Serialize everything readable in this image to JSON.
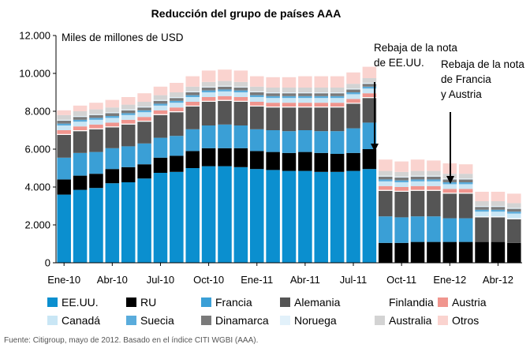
{
  "chart_data": {
    "type": "bar",
    "stacked": true,
    "title": "Reducción del grupo de países AAA",
    "ylabel": "Miles de millones de USD",
    "xlabel": "",
    "ylim": [
      0,
      12000
    ],
    "y_ticks": [
      0,
      2000,
      4000,
      6000,
      8000,
      10000,
      12000
    ],
    "y_tick_labels": [
      "0",
      "2.000",
      "4.000",
      "6.000",
      "8.000",
      "10.000",
      "12.000"
    ],
    "grid": false,
    "legend_position": "bottom",
    "categories": [
      "Ene-10",
      "Feb-10",
      "Mar-10",
      "Abr-10",
      "May-10",
      "Jun-10",
      "Jul-10",
      "Ago-10",
      "Sep-10",
      "Oct-10",
      "Nov-10",
      "Dic-10",
      "Ene-11",
      "Feb-11",
      "Mar-11",
      "Abr-11",
      "May-11",
      "Jun-11",
      "Jul-11",
      "Ago-11",
      "Sep-11",
      "Oct-11",
      "Nov-11",
      "Dic-11",
      "Ene-12",
      "Feb-12",
      "Mar-12",
      "Abr-12",
      "May-12"
    ],
    "x_tick_labels": [
      "Ene-10",
      "Abr-10",
      "Jul-10",
      "Oct-10",
      "Ene-11",
      "Abr-11",
      "Jul-11",
      "Oct-11",
      "Ene-12",
      "Abr-12"
    ],
    "x_tick_indices": [
      0,
      3,
      6,
      9,
      12,
      15,
      18,
      21,
      24,
      27
    ],
    "series": [
      {
        "name": "EE.UU.",
        "color": "#0b8fcf",
        "values": [
          3600,
          3850,
          3950,
          4200,
          4250,
          4450,
          4750,
          4800,
          5000,
          5100,
          5100,
          5050,
          4950,
          4900,
          4850,
          4850,
          4800,
          4800,
          4850,
          4950,
          0,
          0,
          0,
          0,
          0,
          0,
          0,
          0,
          0
        ]
      },
      {
        "name": "RU",
        "color": "#000000",
        "values": [
          800,
          750,
          750,
          750,
          800,
          750,
          800,
          850,
          900,
          950,
          950,
          1000,
          950,
          950,
          950,
          1000,
          1000,
          950,
          950,
          1050,
          1050,
          1050,
          1100,
          1100,
          1100,
          1100,
          1100,
          1100,
          1050
        ]
      },
      {
        "name": "Francia",
        "color": "#3a9fd6",
        "values": [
          1150,
          1200,
          1150,
          1100,
          1100,
          1100,
          1050,
          1050,
          1150,
          1200,
          1250,
          1200,
          1150,
          1150,
          1150,
          1150,
          1150,
          1200,
          1300,
          1400,
          1400,
          1350,
          1350,
          1350,
          1250,
          1250,
          0,
          0,
          0
        ]
      },
      {
        "name": "Alemania",
        "color": "#555555",
        "values": [
          1200,
          1150,
          1200,
          1100,
          1150,
          1150,
          1200,
          1250,
          1200,
          1250,
          1250,
          1250,
          1200,
          1200,
          1250,
          1200,
          1250,
          1250,
          1300,
          1300,
          1350,
          1350,
          1350,
          1350,
          1300,
          1300,
          1300,
          1300,
          1250
        ]
      },
      {
        "name": "Finlandia",
        "color": "#ffffff",
        "values": [
          50,
          50,
          50,
          50,
          50,
          50,
          50,
          50,
          50,
          50,
          50,
          50,
          50,
          50,
          50,
          50,
          50,
          50,
          50,
          50,
          50,
          50,
          50,
          50,
          50,
          50,
          50,
          50,
          50
        ]
      },
      {
        "name": "Austria",
        "color": "#f0958e",
        "values": [
          200,
          200,
          200,
          200,
          200,
          200,
          200,
          200,
          200,
          200,
          200,
          200,
          200,
          200,
          200,
          200,
          200,
          200,
          200,
          200,
          200,
          200,
          200,
          200,
          200,
          200,
          0,
          0,
          0
        ]
      },
      {
        "name": "Canadá",
        "color": "#c9e6f5",
        "values": [
          250,
          250,
          250,
          250,
          250,
          250,
          250,
          250,
          250,
          250,
          250,
          250,
          250,
          250,
          250,
          250,
          250,
          250,
          250,
          250,
          250,
          250,
          250,
          250,
          250,
          250,
          250,
          250,
          250
        ]
      },
      {
        "name": "Suecia",
        "color": "#5aacdc",
        "values": [
          100,
          100,
          100,
          100,
          100,
          100,
          100,
          100,
          100,
          100,
          100,
          100,
          100,
          100,
          100,
          100,
          100,
          100,
          100,
          100,
          100,
          100,
          100,
          100,
          100,
          100,
          100,
          100,
          100
        ]
      },
      {
        "name": "Dinamarca",
        "color": "#7a7a7a",
        "values": [
          150,
          150,
          150,
          150,
          150,
          150,
          150,
          150,
          150,
          150,
          150,
          150,
          150,
          150,
          150,
          150,
          150,
          150,
          150,
          150,
          150,
          150,
          150,
          150,
          150,
          150,
          150,
          150,
          150
        ]
      },
      {
        "name": "Noruega",
        "color": "#e2f1fa",
        "values": [
          50,
          50,
          50,
          50,
          50,
          50,
          50,
          50,
          50,
          50,
          50,
          50,
          50,
          50,
          50,
          50,
          50,
          50,
          50,
          50,
          50,
          50,
          50,
          50,
          50,
          50,
          50,
          50,
          50
        ]
      },
      {
        "name": "Australia",
        "color": "#d3d3d3",
        "values": [
          250,
          250,
          250,
          250,
          250,
          250,
          250,
          250,
          250,
          250,
          250,
          250,
          250,
          250,
          250,
          250,
          250,
          250,
          250,
          250,
          250,
          250,
          250,
          250,
          250,
          250,
          250,
          250,
          250
        ]
      },
      {
        "name": "Otros",
        "color": "#fad3cf",
        "values": [
          250,
          300,
          350,
          400,
          400,
          450,
          450,
          500,
          550,
          600,
          600,
          600,
          550,
          550,
          550,
          600,
          600,
          600,
          600,
          600,
          600,
          550,
          600,
          550,
          550,
          500,
          500,
          500,
          500
        ]
      }
    ],
    "annotations": [
      {
        "lines": [
          "Rebaja de la nota",
          "de EE.UU."
        ],
        "category_index": 19
      },
      {
        "lines": [
          "Rebaja de la nota",
          "de Francia",
          "y Austria"
        ],
        "category_index": 25
      }
    ]
  },
  "source_note": "Fuente: Citigroup, mayo de 2012. Basado en el índice CITI WGBI (AAA)."
}
